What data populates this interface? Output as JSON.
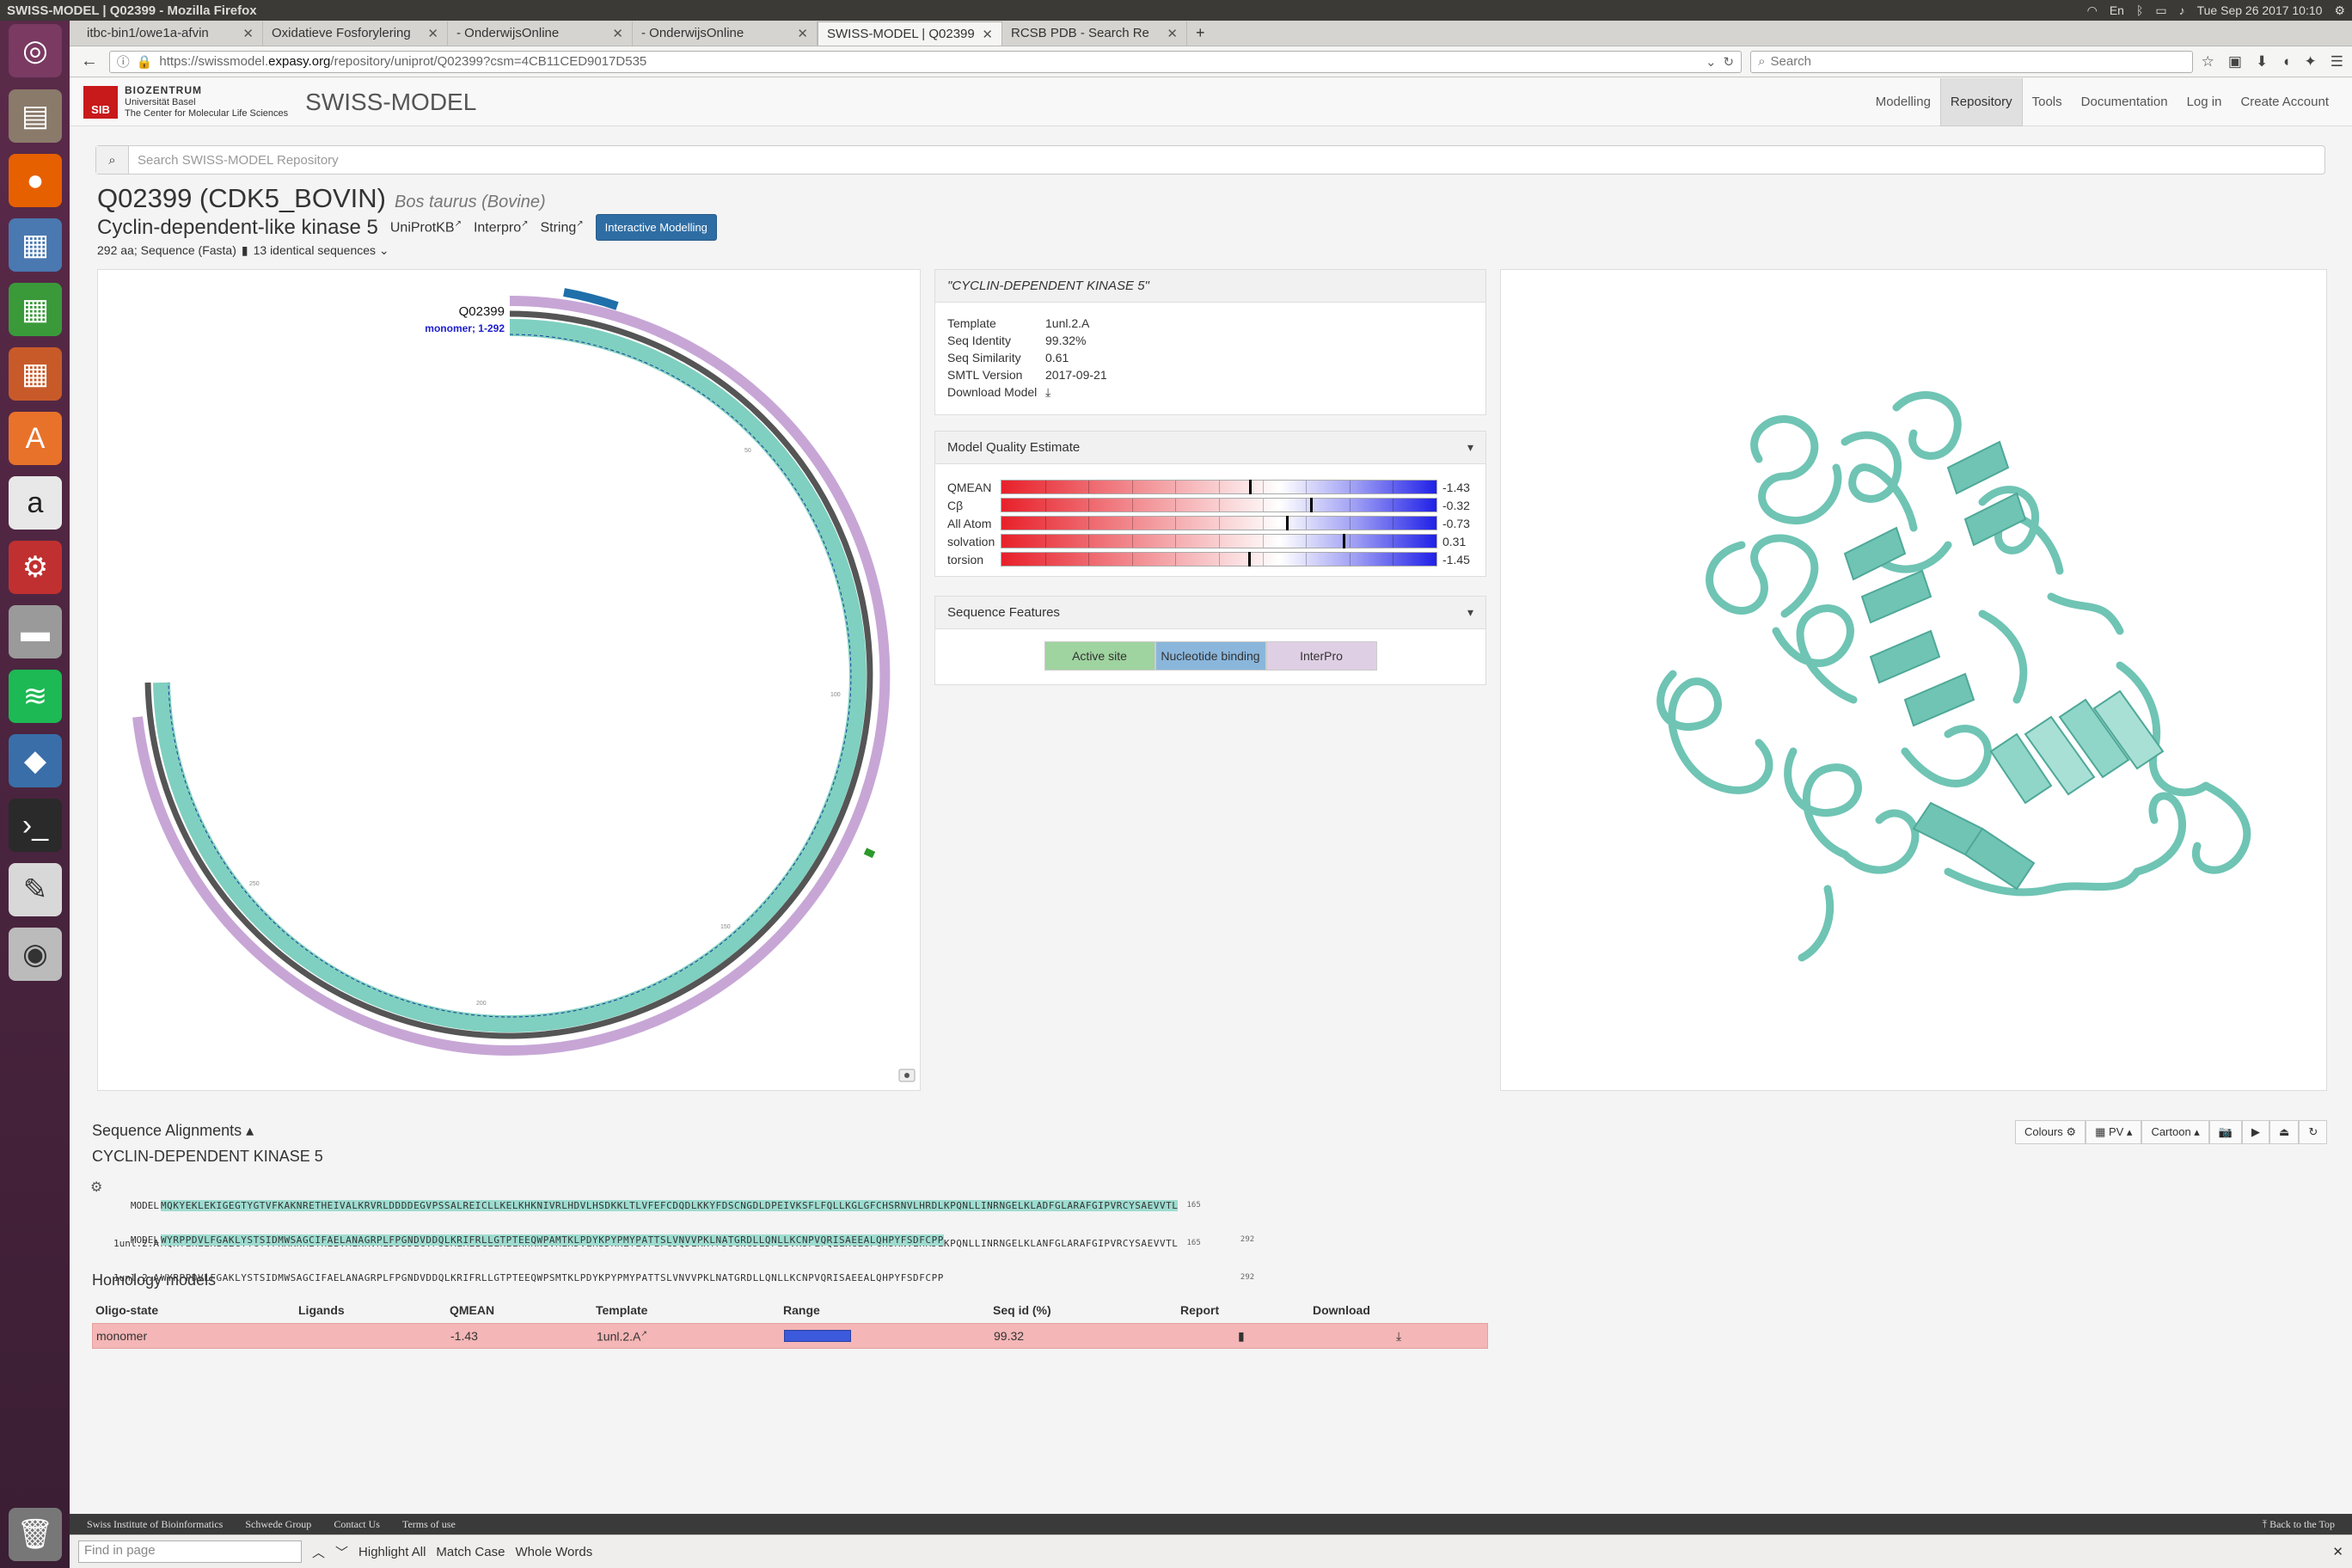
{
  "os": {
    "window_title": "SWISS-MODEL | Q02399 - Mozilla Firefox",
    "clock": "Tue Sep 26 2017 10:10",
    "keyboard": "En"
  },
  "browser": {
    "tabs": [
      {
        "label": "itbc-bin1/owe1a-afvin"
      },
      {
        "label": "Oxidatieve Fosforylering"
      },
      {
        "label": "- OnderwijsOnline"
      },
      {
        "label": "- OnderwijsOnline"
      },
      {
        "label": "SWISS-MODEL | Q02399"
      },
      {
        "label": "RCSB PDB - Search Re"
      }
    ],
    "url_prefix": "https://swissmodel.",
    "url_host": "expasy.org",
    "url_path": "/repository/uniprot/Q02399?csm=4CB11CED9017D535",
    "search_placeholder": "Search"
  },
  "site": {
    "logo": "SIB",
    "org": "BIOZENTRUM",
    "org_sub1": "Universität Basel",
    "org_sub2": "The Center for Molecular Life Sciences",
    "name": "SWISS-MODEL",
    "nav": [
      "Modelling",
      "Repository",
      "Tools",
      "Documentation",
      "Log in",
      "Create Account"
    ],
    "repo_search_placeholder": "Search SWISS-MODEL Repository"
  },
  "protein": {
    "title": "Q02399 (CDK5_BOVIN)",
    "species": "Bos taurus (Bovine)",
    "name": "Cyclin-dependent-like kinase 5",
    "links": [
      "UniProtKB",
      "Interpro",
      "String"
    ],
    "interactive_btn": "Interactive Modelling",
    "length_text": "292 aa; Sequence (Fasta)",
    "identical_text": "13 identical sequences"
  },
  "circle": {
    "id_label": "Q02399",
    "monomer_label": "monomer; 1-292",
    "ticks": [
      "50",
      "100",
      "150",
      "200",
      "250"
    ]
  },
  "template": {
    "heading": "\"CYCLIN-DEPENDENT KINASE 5\"",
    "rows": [
      {
        "k": "Template",
        "v": "1unl.2.A"
      },
      {
        "k": "Seq Identity",
        "v": "99.32%"
      },
      {
        "k": "Seq Similarity",
        "v": "0.61"
      },
      {
        "k": "SMTL Version",
        "v": "2017-09-21"
      },
      {
        "k": "Download Model",
        "v": ""
      }
    ]
  },
  "quality": {
    "heading": "Model Quality Estimate",
    "rows": [
      {
        "label": "QMEAN",
        "value": "-1.43",
        "pos": 0.57
      },
      {
        "label": "Cβ",
        "value": "-0.32",
        "pos": 0.71
      },
      {
        "label": "All Atom",
        "value": "-0.73",
        "pos": 0.655
      },
      {
        "label": "solvation",
        "value": "0.31",
        "pos": 0.785
      },
      {
        "label": "torsion",
        "value": "-1.45",
        "pos": 0.568
      }
    ]
  },
  "features": {
    "heading": "Sequence Features",
    "buttons": [
      "Active site",
      "Nucleotide binding",
      "InterPro"
    ]
  },
  "viewer": {
    "toolbar": [
      "Colours ⚙",
      "▦ PV ▴",
      "Cartoon ▴",
      "📷",
      "▶",
      "⏏",
      "↻"
    ]
  },
  "alignment": {
    "section_title": "Sequence Alignments ▴",
    "heading": "CYCLIN-DEPENDENT KINASE 5",
    "blocks": [
      {
        "model_label": "MODEL",
        "model_seq": "MQKYEKLEKIGEGTYGTVFKAKNRETHEIVALKRVRLDDDDEGVPSSALREICLLKELKHKNIVRLHDVLHSDKKLTLVFEFCDQDLKKYFDSCNGDLDPEIVKSFLFQLLKGLGFCHSRNVLHRDLKPQNLLINRNGELKLADFGLARAFGIPVRCYSAEVVTL",
        "tmpl_label": "1unl.2.A",
        "tmpl_seq": "MQKYEKLEKIGEGTYGTVFKAKNRETHEIVALKRVRLDDDDEGVPSSALREICLLKELKHKNIVRLHDVLHSDKKLTLVFEFCDQDLKKYFDSCNGDLDPEIVKSFLFQLLKGLGFCHSRNVLHRDLKPQNLLINRNGELKLANFGLARAFGIPVRCYSAEVVTL",
        "end": "165"
      },
      {
        "model_label": "MODEL",
        "model_seq": "WYRPPDVLFGAKLYSTSIDMWSAGCIFAELANAGRPLFPGNDVDDQLKRIFRLLGTPTEEQWPAMTKLPDYKPYPMYPATTSLVNVVPKLNATGRDLLQNLLKCNPVQRISAEEALQHPYFSDFCPP",
        "tmpl_label": "1unl.2.A",
        "tmpl_seq": "WYRPPDVLFGAKLYSTSIDMWSAGCIFAELANAGRPLFPGNDVDDQLKRIFRLLGTPTEEQWPSMTKLPDYKPYPMYPATTSLVNVVPKLNATGRDLLQNLLKCNPVQRISAEEALQHPYFSDFCPP",
        "end": "292"
      }
    ]
  },
  "homology": {
    "title": "Homology models",
    "headers": [
      "Oligo-state",
      "Ligands",
      "QMEAN",
      "Template",
      "Range",
      "Seq id (%)",
      "Report",
      "Download"
    ],
    "row": {
      "oligo": "monomer",
      "ligands": "",
      "qmean": "-1.43",
      "template": "1unl.2.A",
      "seqid": "99.32"
    }
  },
  "footer": {
    "links": [
      "Swiss Institute of Bioinformatics",
      "Schwede Group",
      "Contact Us",
      "Terms of use"
    ],
    "back": "Back to the Top"
  },
  "findbar": {
    "placeholder": "Find in page",
    "options": [
      "Highlight All",
      "Match Case",
      "Whole Words"
    ]
  },
  "colors": {
    "accent": "#2e6da4",
    "alignment_model": "#9edcd0",
    "ribbon": "#6fc4b4",
    "row_highlight": "#f4b6b6",
    "active_site": "#9fd39f",
    "nucleotide_binding": "#8ab6dc",
    "interpro": "#dfcfe4"
  }
}
